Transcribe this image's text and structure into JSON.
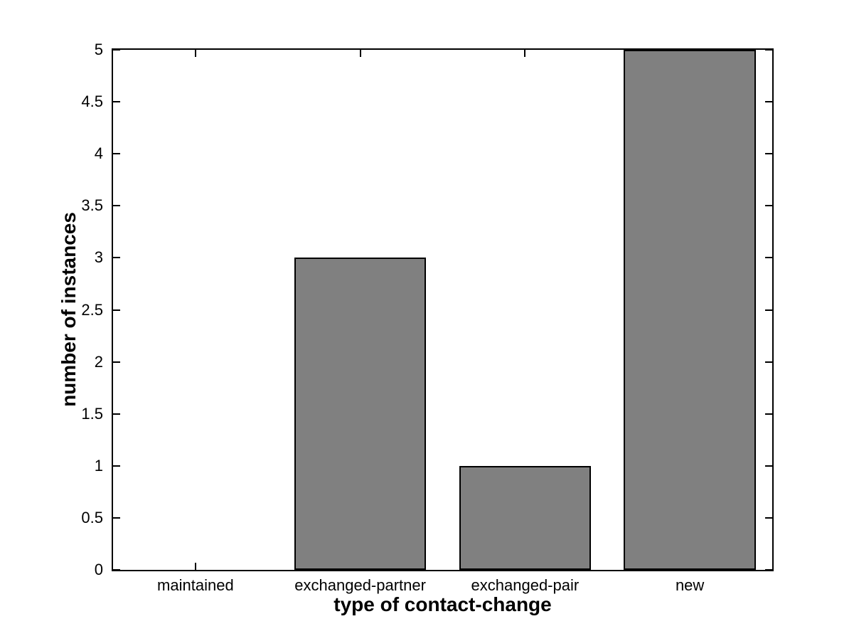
{
  "chart_data": {
    "type": "bar",
    "title": "",
    "categories": [
      "maintained",
      "exchanged-partner",
      "exchanged-pair",
      "new"
    ],
    "values": [
      0,
      3,
      1,
      5
    ],
    "xlabel": "type of contact-change",
    "ylabel": "number of instances",
    "ylim": [
      0,
      5
    ],
    "ytick_step": 0.5,
    "ytick_labels": [
      "0",
      "0.5",
      "1",
      "1.5",
      "2",
      "2.5",
      "3",
      "3.5",
      "4",
      "4.5",
      "5"
    ],
    "bar_width_fraction": 0.8,
    "bar_color": "#808080",
    "bar_edge_color": "#000000",
    "axis_color": "#000000",
    "background_color": "#ffffff",
    "grid": false,
    "legend": null,
    "tick_direction": "in",
    "box": true
  }
}
